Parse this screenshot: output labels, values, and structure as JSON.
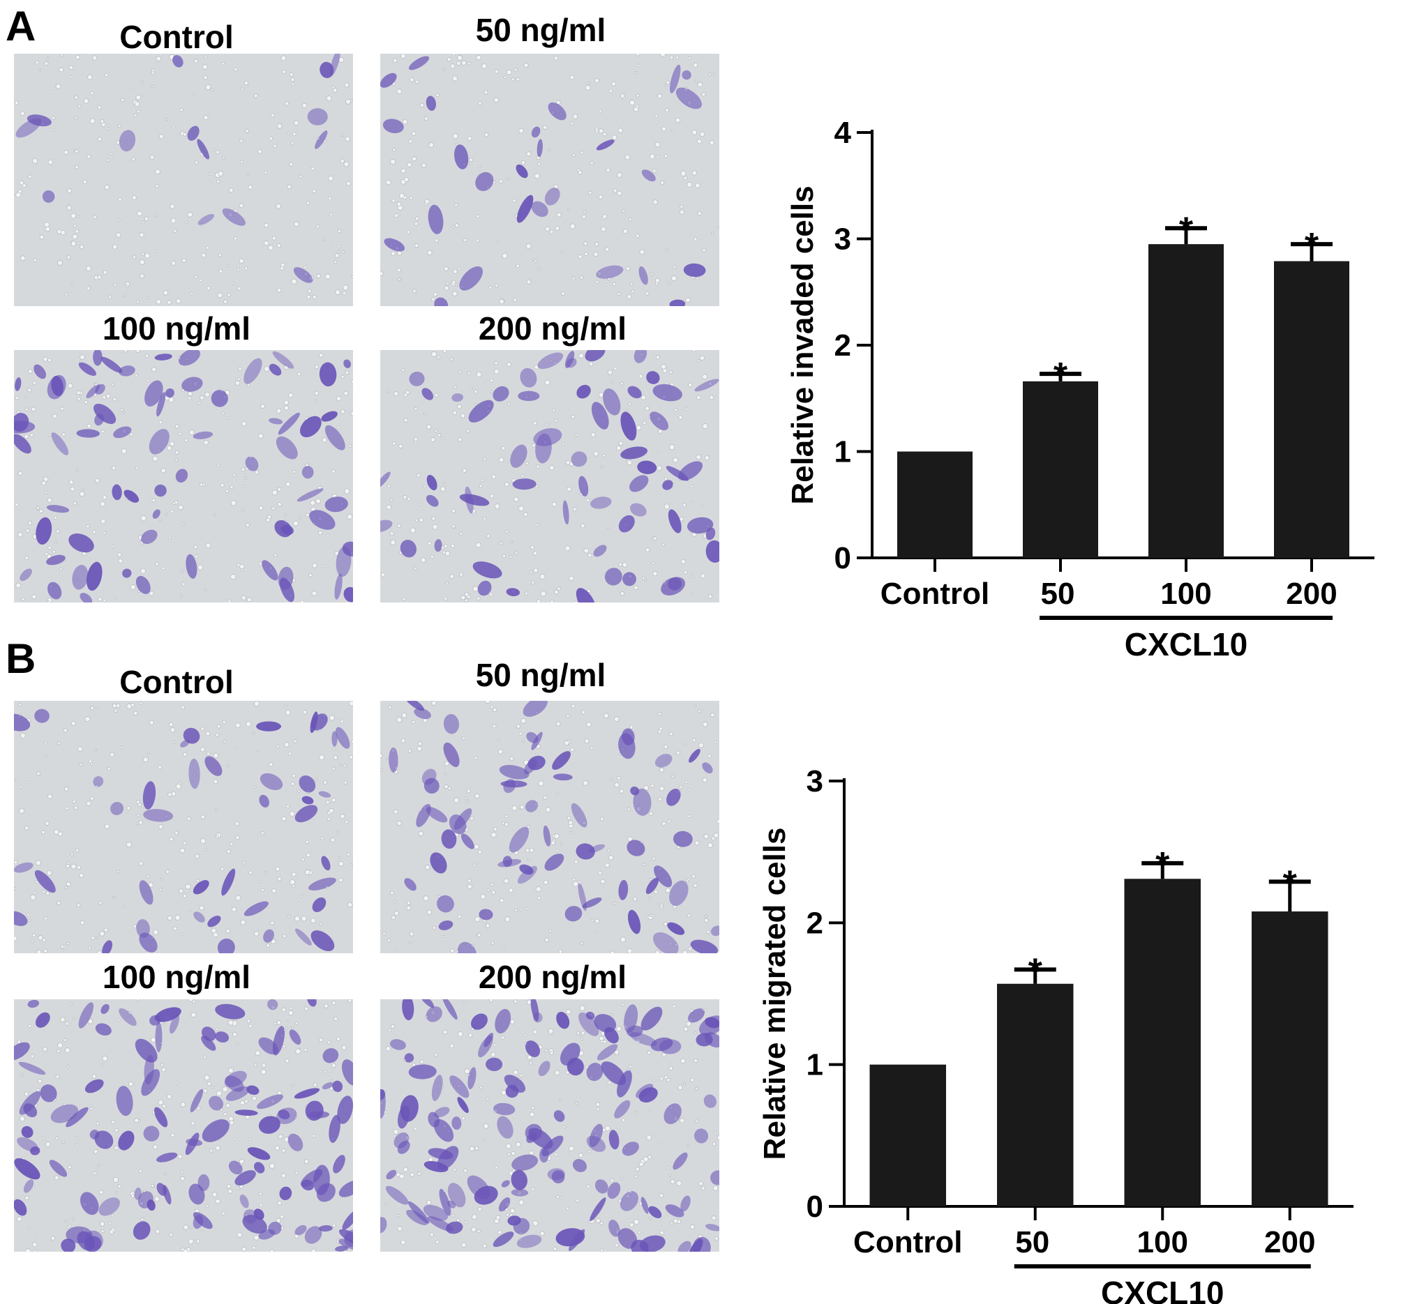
{
  "panels": [
    {
      "letter": "A",
      "images": [
        {
          "label": "Control",
          "density": 14
        },
        {
          "label": "50 ng/ml",
          "density": 26
        },
        {
          "label": "100 ng/ml",
          "density": 70
        },
        {
          "label": "200 ng/ml",
          "density": 58
        }
      ]
    },
    {
      "letter": "B",
      "images": [
        {
          "label": "Control",
          "density": 40
        },
        {
          "label": "50 ng/ml",
          "density": 62
        },
        {
          "label": "100 ng/ml",
          "density": 110
        },
        {
          "label": "200 ng/ml",
          "density": 120
        }
      ]
    }
  ],
  "chart_data": [
    {
      "type": "bar",
      "categories": [
        "Control",
        "50",
        "100",
        "200"
      ],
      "values": [
        1.0,
        1.66,
        2.95,
        2.79
      ],
      "errors": [
        0,
        0.07,
        0.15,
        0.16
      ],
      "significance": [
        "",
        "*",
        "*",
        "*"
      ],
      "ylabel": "Relative invaded cells",
      "ylim": [
        0,
        4
      ],
      "yticks": [
        0,
        1,
        2,
        3,
        4
      ],
      "group_label": "CXCL10",
      "bar_color": "#1a1a1a"
    },
    {
      "type": "bar",
      "categories": [
        "Control",
        "50",
        "100",
        "200"
      ],
      "values": [
        1.0,
        1.57,
        2.31,
        2.08
      ],
      "errors": [
        0,
        0.1,
        0.11,
        0.21
      ],
      "significance": [
        "",
        "*",
        "*",
        "*"
      ],
      "ylabel": "Relative migrated cells",
      "ylim": [
        0,
        3
      ],
      "yticks": [
        0,
        1,
        2,
        3
      ],
      "group_label": "CXCL10",
      "bar_color": "#1a1a1a"
    }
  ]
}
